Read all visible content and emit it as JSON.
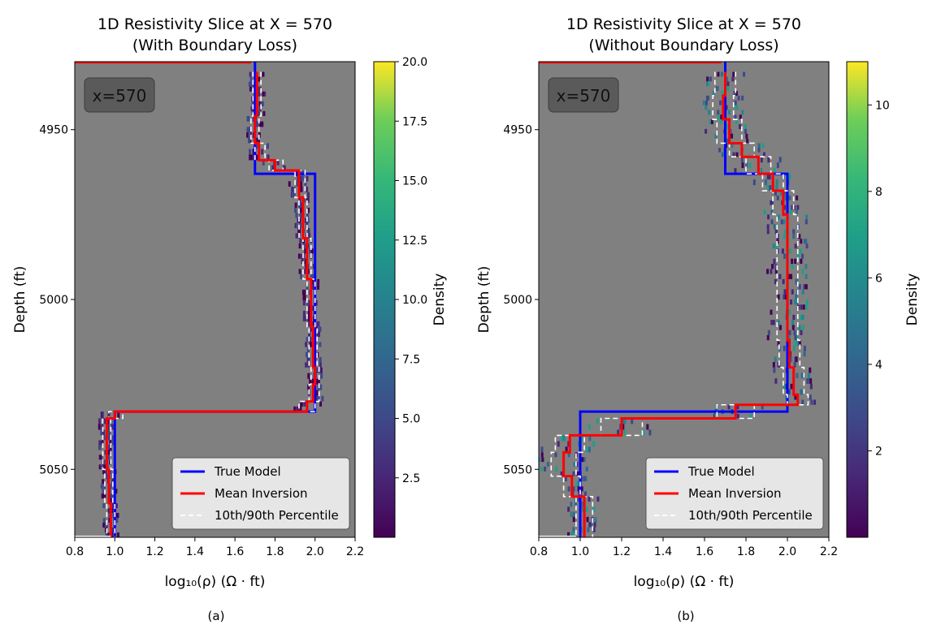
{
  "chart_data": [
    {
      "type": "line",
      "title": "1D Resistivity Slice at X = 570",
      "subtitle": "(With Boundary Loss)",
      "xlabel": "log₁₀(ρ) (Ω · ft)",
      "ylabel": "Depth (ft)",
      "xlim": [
        0.8,
        2.2
      ],
      "ylim": [
        5070,
        4930
      ],
      "x_ticks": [
        "0.8",
        "1.0",
        "1.2",
        "1.4",
        "1.6",
        "1.8",
        "2.0",
        "2.2"
      ],
      "y_ticks": [
        "4950",
        "5000",
        "5050"
      ],
      "annotation": "x=570",
      "colorbar": {
        "label": "Density",
        "range": [
          0,
          20
        ],
        "ticks": [
          "2.5",
          "5.0",
          "7.5",
          "10.0",
          "12.5",
          "15.0",
          "17.5",
          "20.0"
        ]
      },
      "legend": {
        "position": "lower-right",
        "entries": [
          "True Model",
          "Mean Inversion",
          "10th/90th Percentile"
        ]
      },
      "series": [
        {
          "name": "True Model",
          "depth": [
            4930,
            4943,
            4943,
            4963,
            4963,
            5033,
            5033,
            5070
          ],
          "values": [
            1.7,
            1.7,
            1.7,
            1.7,
            2.0,
            2.0,
            1.0,
            1.0
          ]
        },
        {
          "name": "Mean Inversion",
          "depth": [
            4933,
            4946,
            4954,
            4959,
            4962,
            4970,
            4982,
            4994,
            5008,
            5020,
            5025,
            5030,
            5033,
            5035,
            5040,
            5050,
            5060,
            5070
          ],
          "values": [
            1.71,
            1.7,
            1.72,
            1.8,
            1.92,
            1.94,
            1.96,
            1.98,
            1.99,
            2.0,
            1.99,
            1.96,
            1.0,
            0.96,
            0.96,
            0.97,
            0.98,
            0.98
          ]
        },
        {
          "name": "10th Percentile",
          "depth": [
            4933,
            4946,
            4954,
            4959,
            4962,
            4970,
            4982,
            4994,
            5008,
            5020,
            5025,
            5030,
            5033,
            5035,
            5040,
            5050,
            5060,
            5070
          ],
          "values": [
            1.69,
            1.68,
            1.7,
            1.77,
            1.9,
            1.92,
            1.94,
            1.96,
            1.97,
            1.98,
            1.97,
            1.92,
            0.97,
            0.94,
            0.94,
            0.95,
            0.96,
            0.96
          ]
        },
        {
          "name": "90th Percentile",
          "depth": [
            4933,
            4946,
            4954,
            4959,
            4962,
            4970,
            4982,
            4994,
            5008,
            5020,
            5025,
            5030,
            5033,
            5035,
            5040,
            5050,
            5060,
            5070
          ],
          "values": [
            1.73,
            1.72,
            1.75,
            1.84,
            1.95,
            1.96,
            1.98,
            2.0,
            2.01,
            2.02,
            2.02,
            2.0,
            1.04,
            0.98,
            0.98,
            0.99,
            1.0,
            1.0
          ]
        }
      ]
    },
    {
      "type": "line",
      "title": "1D Resistivity Slice at X = 570",
      "subtitle": "(Without Boundary Loss)",
      "xlabel": "log₁₀(ρ) (Ω · ft)",
      "ylabel": "Depth (ft)",
      "xlim": [
        0.8,
        2.2
      ],
      "ylim": [
        5070,
        4930
      ],
      "x_ticks": [
        "0.8",
        "1.0",
        "1.2",
        "1.4",
        "1.6",
        "1.8",
        "2.0",
        "2.2"
      ],
      "y_ticks": [
        "4950",
        "5000",
        "5050"
      ],
      "annotation": "x=570",
      "colorbar": {
        "label": "Density",
        "range": [
          0,
          11
        ],
        "ticks": [
          "2",
          "4",
          "6",
          "8",
          "10"
        ]
      },
      "legend": {
        "position": "lower-right",
        "entries": [
          "True Model",
          "Mean Inversion",
          "10th/90th Percentile"
        ]
      },
      "series": [
        {
          "name": "True Model",
          "depth": [
            4930,
            4943,
            4943,
            4963,
            4963,
            5033,
            5033,
            5070
          ],
          "values": [
            1.7,
            1.7,
            1.7,
            1.7,
            2.0,
            2.0,
            1.0,
            1.0
          ]
        },
        {
          "name": "Mean Inversion",
          "depth": [
            4933,
            4940,
            4947,
            4954,
            4958,
            4963,
            4968,
            4975,
            4985,
            5000,
            5012,
            5020,
            5028,
            5031,
            5035,
            5040,
            5045,
            5052,
            5058,
            5070
          ],
          "values": [
            1.7,
            1.69,
            1.72,
            1.78,
            1.86,
            1.93,
            1.98,
            2.0,
            2.0,
            2.0,
            2.01,
            2.03,
            2.05,
            1.75,
            1.2,
            0.95,
            0.92,
            0.96,
            1.02,
            1.02
          ]
        },
        {
          "name": "10th Percentile",
          "depth": [
            4933,
            4940,
            4947,
            4954,
            4958,
            4963,
            4968,
            4975,
            4985,
            5000,
            5012,
            5020,
            5028,
            5031,
            5035,
            5040,
            5045,
            5052,
            5058,
            5070
          ],
          "values": [
            1.65,
            1.64,
            1.66,
            1.72,
            1.8,
            1.88,
            1.93,
            1.95,
            1.95,
            1.95,
            1.96,
            1.98,
            2.0,
            1.66,
            1.1,
            0.88,
            0.86,
            0.92,
            0.98,
            0.98
          ]
        },
        {
          "name": "90th Percentile",
          "depth": [
            4933,
            4940,
            4947,
            4954,
            4958,
            4963,
            4968,
            4975,
            4985,
            5000,
            5012,
            5020,
            5028,
            5031,
            5035,
            5040,
            5045,
            5052,
            5058,
            5070
          ],
          "values": [
            1.75,
            1.74,
            1.78,
            1.84,
            1.92,
            1.98,
            2.03,
            2.05,
            2.05,
            2.05,
            2.06,
            2.08,
            2.1,
            1.84,
            1.3,
            1.02,
            0.98,
            1.0,
            1.06,
            1.06
          ]
        }
      ]
    }
  ],
  "captions": [
    "(a)",
    "(b)"
  ],
  "colors": {
    "plot_background": "#808080",
    "true_model": "#0000ff",
    "mean_inversion": "#ff0000",
    "percentile": "#ffffff",
    "annotation_box": "#5a5a5a"
  }
}
